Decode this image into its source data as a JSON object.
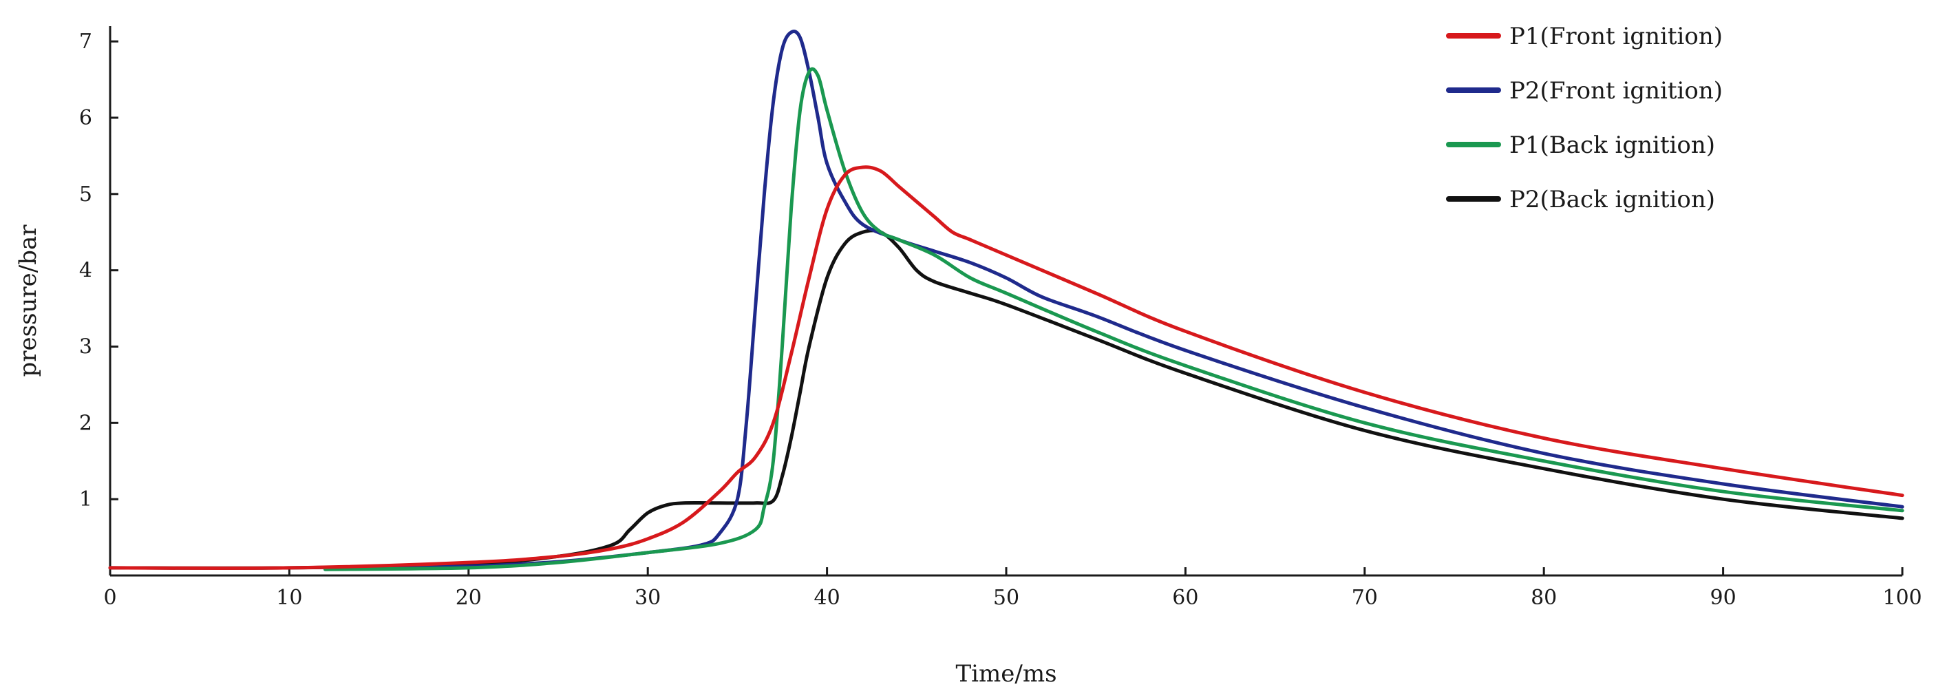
{
  "chart_data": {
    "type": "line",
    "title": "",
    "xlabel": "Time/ms",
    "ylabel": "pressure/bar",
    "xlim": [
      0,
      100
    ],
    "ylim": [
      0,
      7.2
    ],
    "xticks": [
      0,
      10,
      20,
      30,
      40,
      50,
      60,
      70,
      80,
      90,
      100
    ],
    "yticks": [
      1,
      2,
      3,
      4,
      5,
      6,
      7
    ],
    "grid": false,
    "legend_position": "top-right",
    "series": [
      {
        "name": "P1(Front ignition)",
        "color": "#d7191c",
        "x": [
          0,
          10,
          20,
          25,
          28,
          30,
          32,
          34,
          35,
          36,
          37,
          38,
          39,
          40,
          41,
          42,
          43,
          44,
          45,
          46,
          47,
          48,
          50,
          55,
          60,
          70,
          80,
          90,
          100
        ],
        "y": [
          0.1,
          0.1,
          0.17,
          0.25,
          0.35,
          0.48,
          0.7,
          1.1,
          1.35,
          1.55,
          2.0,
          2.9,
          3.9,
          4.8,
          5.25,
          5.35,
          5.3,
          5.1,
          4.9,
          4.7,
          4.5,
          4.4,
          4.2,
          3.7,
          3.2,
          2.4,
          1.8,
          1.4,
          1.05
        ]
      },
      {
        "name": "P2(Front ignition)",
        "color": "#1f2a8c",
        "x": [
          12,
          20,
          25,
          30,
          33,
          34,
          35,
          35.5,
          36,
          36.5,
          37,
          37.5,
          38,
          38.5,
          39,
          39.5,
          40,
          41,
          42,
          44,
          46,
          48,
          50,
          52,
          55,
          60,
          70,
          80,
          90,
          100
        ],
        "y": [
          0.08,
          0.12,
          0.18,
          0.3,
          0.4,
          0.55,
          1.0,
          2.0,
          3.5,
          5.0,
          6.2,
          6.9,
          7.12,
          7.05,
          6.6,
          6.0,
          5.4,
          4.9,
          4.6,
          4.4,
          4.25,
          4.1,
          3.9,
          3.65,
          3.4,
          2.95,
          2.2,
          1.6,
          1.2,
          0.9
        ]
      },
      {
        "name": "P1(Back ignition)",
        "color": "#1a9850",
        "x": [
          12,
          20,
          25,
          30,
          34,
          36,
          36.5,
          37,
          37.5,
          38,
          38.5,
          39,
          39.5,
          40,
          41,
          42,
          43,
          44,
          46,
          48,
          50,
          55,
          60,
          70,
          80,
          90,
          100
        ],
        "y": [
          0.08,
          0.1,
          0.17,
          0.3,
          0.42,
          0.6,
          0.9,
          1.5,
          3.0,
          4.8,
          6.1,
          6.6,
          6.55,
          6.1,
          5.3,
          4.75,
          4.5,
          4.4,
          4.2,
          3.9,
          3.7,
          3.2,
          2.75,
          2.0,
          1.5,
          1.1,
          0.85
        ]
      },
      {
        "name": "P2(Back ignition)",
        "color": "#111111",
        "x": [
          0,
          10,
          20,
          25,
          28,
          29,
          30,
          31,
          32,
          34,
          36,
          37,
          37.5,
          38,
          38.5,
          39,
          40,
          41,
          42,
          43,
          44,
          45,
          46,
          48,
          50,
          55,
          60,
          70,
          80,
          90,
          100
        ],
        "y": [
          0.1,
          0.1,
          0.15,
          0.25,
          0.4,
          0.6,
          0.82,
          0.92,
          0.95,
          0.95,
          0.95,
          0.98,
          1.3,
          1.8,
          2.4,
          3.0,
          3.9,
          4.35,
          4.5,
          4.5,
          4.3,
          4.0,
          3.85,
          3.7,
          3.55,
          3.1,
          2.65,
          1.9,
          1.4,
          1.0,
          0.75
        ]
      }
    ]
  }
}
